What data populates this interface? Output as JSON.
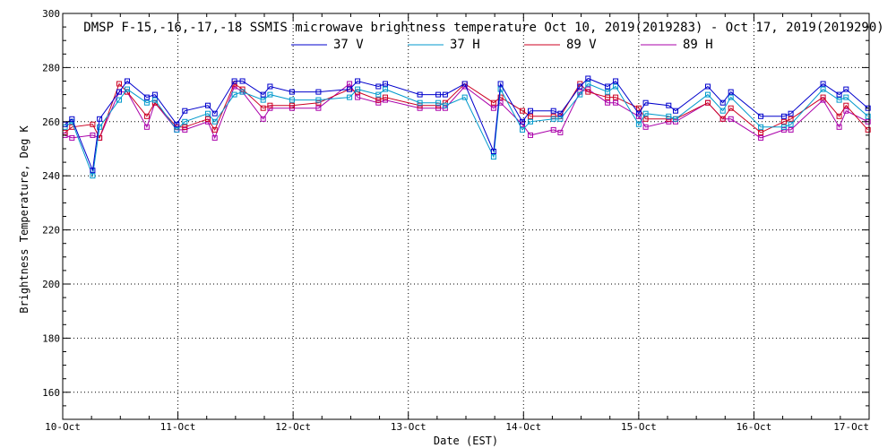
{
  "chart_data": {
    "type": "line",
    "title": "DMSP F-15,-16,-17,-18 SSMIS microwave brightness temperature Oct 10, 2019(2019283) - Oct 17, 2019(2019290)",
    "xlabel": "Date (EST)",
    "ylabel": "Brightness Temperature, Deg K",
    "xlim": [
      0,
      7
    ],
    "ylim": [
      150,
      300
    ],
    "y_ticks": [
      160,
      180,
      200,
      220,
      240,
      260,
      280,
      300
    ],
    "x_ticks": [
      {
        "pos": 0,
        "label": "10-Oct"
      },
      {
        "pos": 1,
        "label": "11-Oct"
      },
      {
        "pos": 2,
        "label": "12-Oct"
      },
      {
        "pos": 3,
        "label": "13-Oct"
      },
      {
        "pos": 4,
        "label": "14-Oct"
      },
      {
        "pos": 5,
        "label": "15-Oct"
      },
      {
        "pos": 6,
        "label": "16-Oct"
      },
      {
        "pos": 7,
        "label": "17-Oct"
      }
    ],
    "grid": true,
    "x": [
      0.02,
      0.08,
      0.26,
      0.32,
      0.49,
      0.56,
      0.73,
      0.8,
      0.99,
      1.06,
      1.26,
      1.32,
      1.49,
      1.56,
      1.74,
      1.8,
      1.99,
      2.22,
      2.49,
      2.56,
      2.74,
      2.8,
      3.1,
      3.26,
      3.32,
      3.49,
      3.74,
      3.8,
      3.99,
      4.06,
      4.26,
      4.32,
      4.49,
      4.56,
      4.73,
      4.8,
      5,
      5.06,
      5.26,
      5.32,
      5.6,
      5.73,
      5.8,
      6.06,
      6.26,
      6.32,
      6.6,
      6.74,
      6.8,
      6.99
    ],
    "series": [
      {
        "name": "37 V",
        "color": "#0000cc",
        "values": [
          259,
          261,
          242,
          261,
          271,
          275,
          269,
          270,
          259,
          264,
          266,
          263,
          275,
          275,
          270,
          273,
          271,
          271,
          272,
          275,
          273,
          274,
          270,
          270,
          270,
          274,
          249,
          274,
          260,
          264,
          264,
          263,
          273,
          276,
          273,
          275,
          263,
          267,
          266,
          264,
          273,
          267,
          271,
          262,
          262,
          263,
          274,
          270,
          272,
          265
        ]
      },
      {
        "name": "37 H",
        "color": "#0099cc",
        "values": [
          258,
          260,
          240,
          258,
          268,
          272,
          267,
          268,
          257,
          260,
          263,
          260,
          270,
          271,
          268,
          270,
          268,
          268,
          269,
          272,
          270,
          272,
          267,
          267,
          266,
          269,
          247,
          272,
          257,
          260,
          261,
          261,
          270,
          274,
          271,
          273,
          259,
          263,
          262,
          261,
          270,
          264,
          269,
          258,
          258,
          259,
          272,
          268,
          269,
          262
        ]
      },
      {
        "name": "89 V",
        "color": "#cc0022",
        "values": [
          256,
          258,
          259,
          254,
          274,
          271,
          262,
          267,
          258,
          258,
          261,
          257,
          274,
          272,
          265,
          266,
          266,
          267,
          272,
          271,
          268,
          269,
          266,
          266,
          267,
          274,
          267,
          269,
          264,
          262,
          262,
          262,
          274,
          271,
          269,
          269,
          265,
          261,
          261,
          261,
          267,
          261,
          265,
          256,
          260,
          261,
          269,
          262,
          266,
          257
        ]
      },
      {
        "name": "89 H",
        "color": "#aa00aa",
        "values": [
          255,
          254,
          255,
          254,
          271,
          271,
          258,
          267,
          257,
          257,
          260,
          254,
          273,
          271,
          261,
          265,
          265,
          265,
          274,
          269,
          267,
          268,
          265,
          265,
          265,
          273,
          265,
          267,
          259,
          255,
          257,
          256,
          271,
          272,
          267,
          267,
          262,
          258,
          260,
          260,
          267,
          261,
          261,
          254,
          257,
          257,
          268,
          258,
          264,
          260
        ]
      }
    ]
  }
}
